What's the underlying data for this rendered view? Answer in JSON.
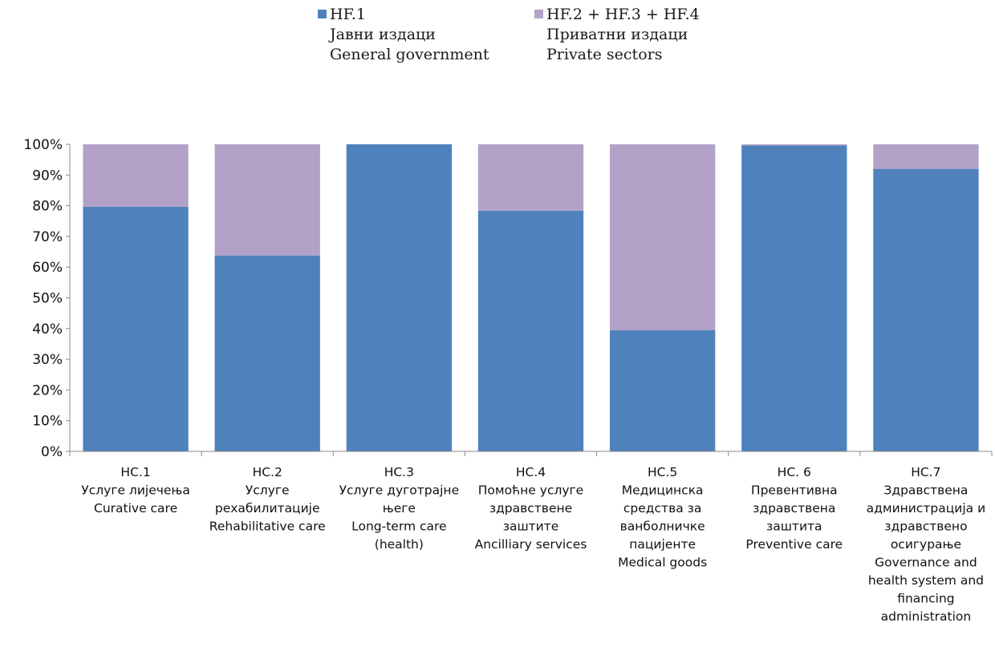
{
  "colors": {
    "general_government": "#4F81BD",
    "private_sectors": "#B2A2C7",
    "axis": "#888888"
  },
  "legend": [
    {
      "code": "HF.1",
      "line1": "Јавни издаци",
      "line2": "General government",
      "color": "#4F81BD"
    },
    {
      "code": "HF.2 + HF.3 + HF.4",
      "line1": "Приватни издаци",
      "line2": "Private sectors",
      "color": "#B2A2C7"
    }
  ],
  "chart_data": {
    "type": "bar",
    "stacked": true,
    "percent_stacked": true,
    "ylim": [
      0,
      100
    ],
    "yticks": [
      "0%",
      "10%",
      "20%",
      "30%",
      "40%",
      "50%",
      "60%",
      "70%",
      "80%",
      "90%",
      "100%"
    ],
    "grid": false,
    "legend_position": "top",
    "categories": [
      [
        "HC.1",
        "Услуге лијечења",
        "Curative care"
      ],
      [
        "HC.2",
        "Услуге",
        "рехабилитације",
        "Rehabilitative care"
      ],
      [
        "HC.3",
        "Услуге дуготрајне",
        "његе",
        "Long-term care",
        "(health)"
      ],
      [
        "HC.4",
        "Помоћне услуге",
        "здравствене",
        "заштите",
        "Ancilliary services"
      ],
      [
        "HC.5",
        "Медицинска",
        "средства за",
        "ванболничке",
        "пацијенте",
        "Medical goods"
      ],
      [
        "HC. 6",
        "Превентивна",
        "здравствена",
        "заштита",
        "Preventive care"
      ],
      [
        "HC.7",
        "Здравствена",
        "администрација и",
        "здравствено",
        "осигурање",
        "Governance and",
        "health system and",
        "financing",
        "administration"
      ]
    ],
    "series": [
      {
        "name": "HF.1 Јавни издаци General government",
        "values": [
          79.7,
          63.8,
          100,
          78.4,
          39.5,
          99.6,
          92.0
        ]
      },
      {
        "name": "HF.2 + HF.3 + HF.4 Приватни издаци Private sectors",
        "values": [
          20.3,
          36.2,
          0,
          21.6,
          60.5,
          0.4,
          8.0
        ]
      }
    ]
  }
}
